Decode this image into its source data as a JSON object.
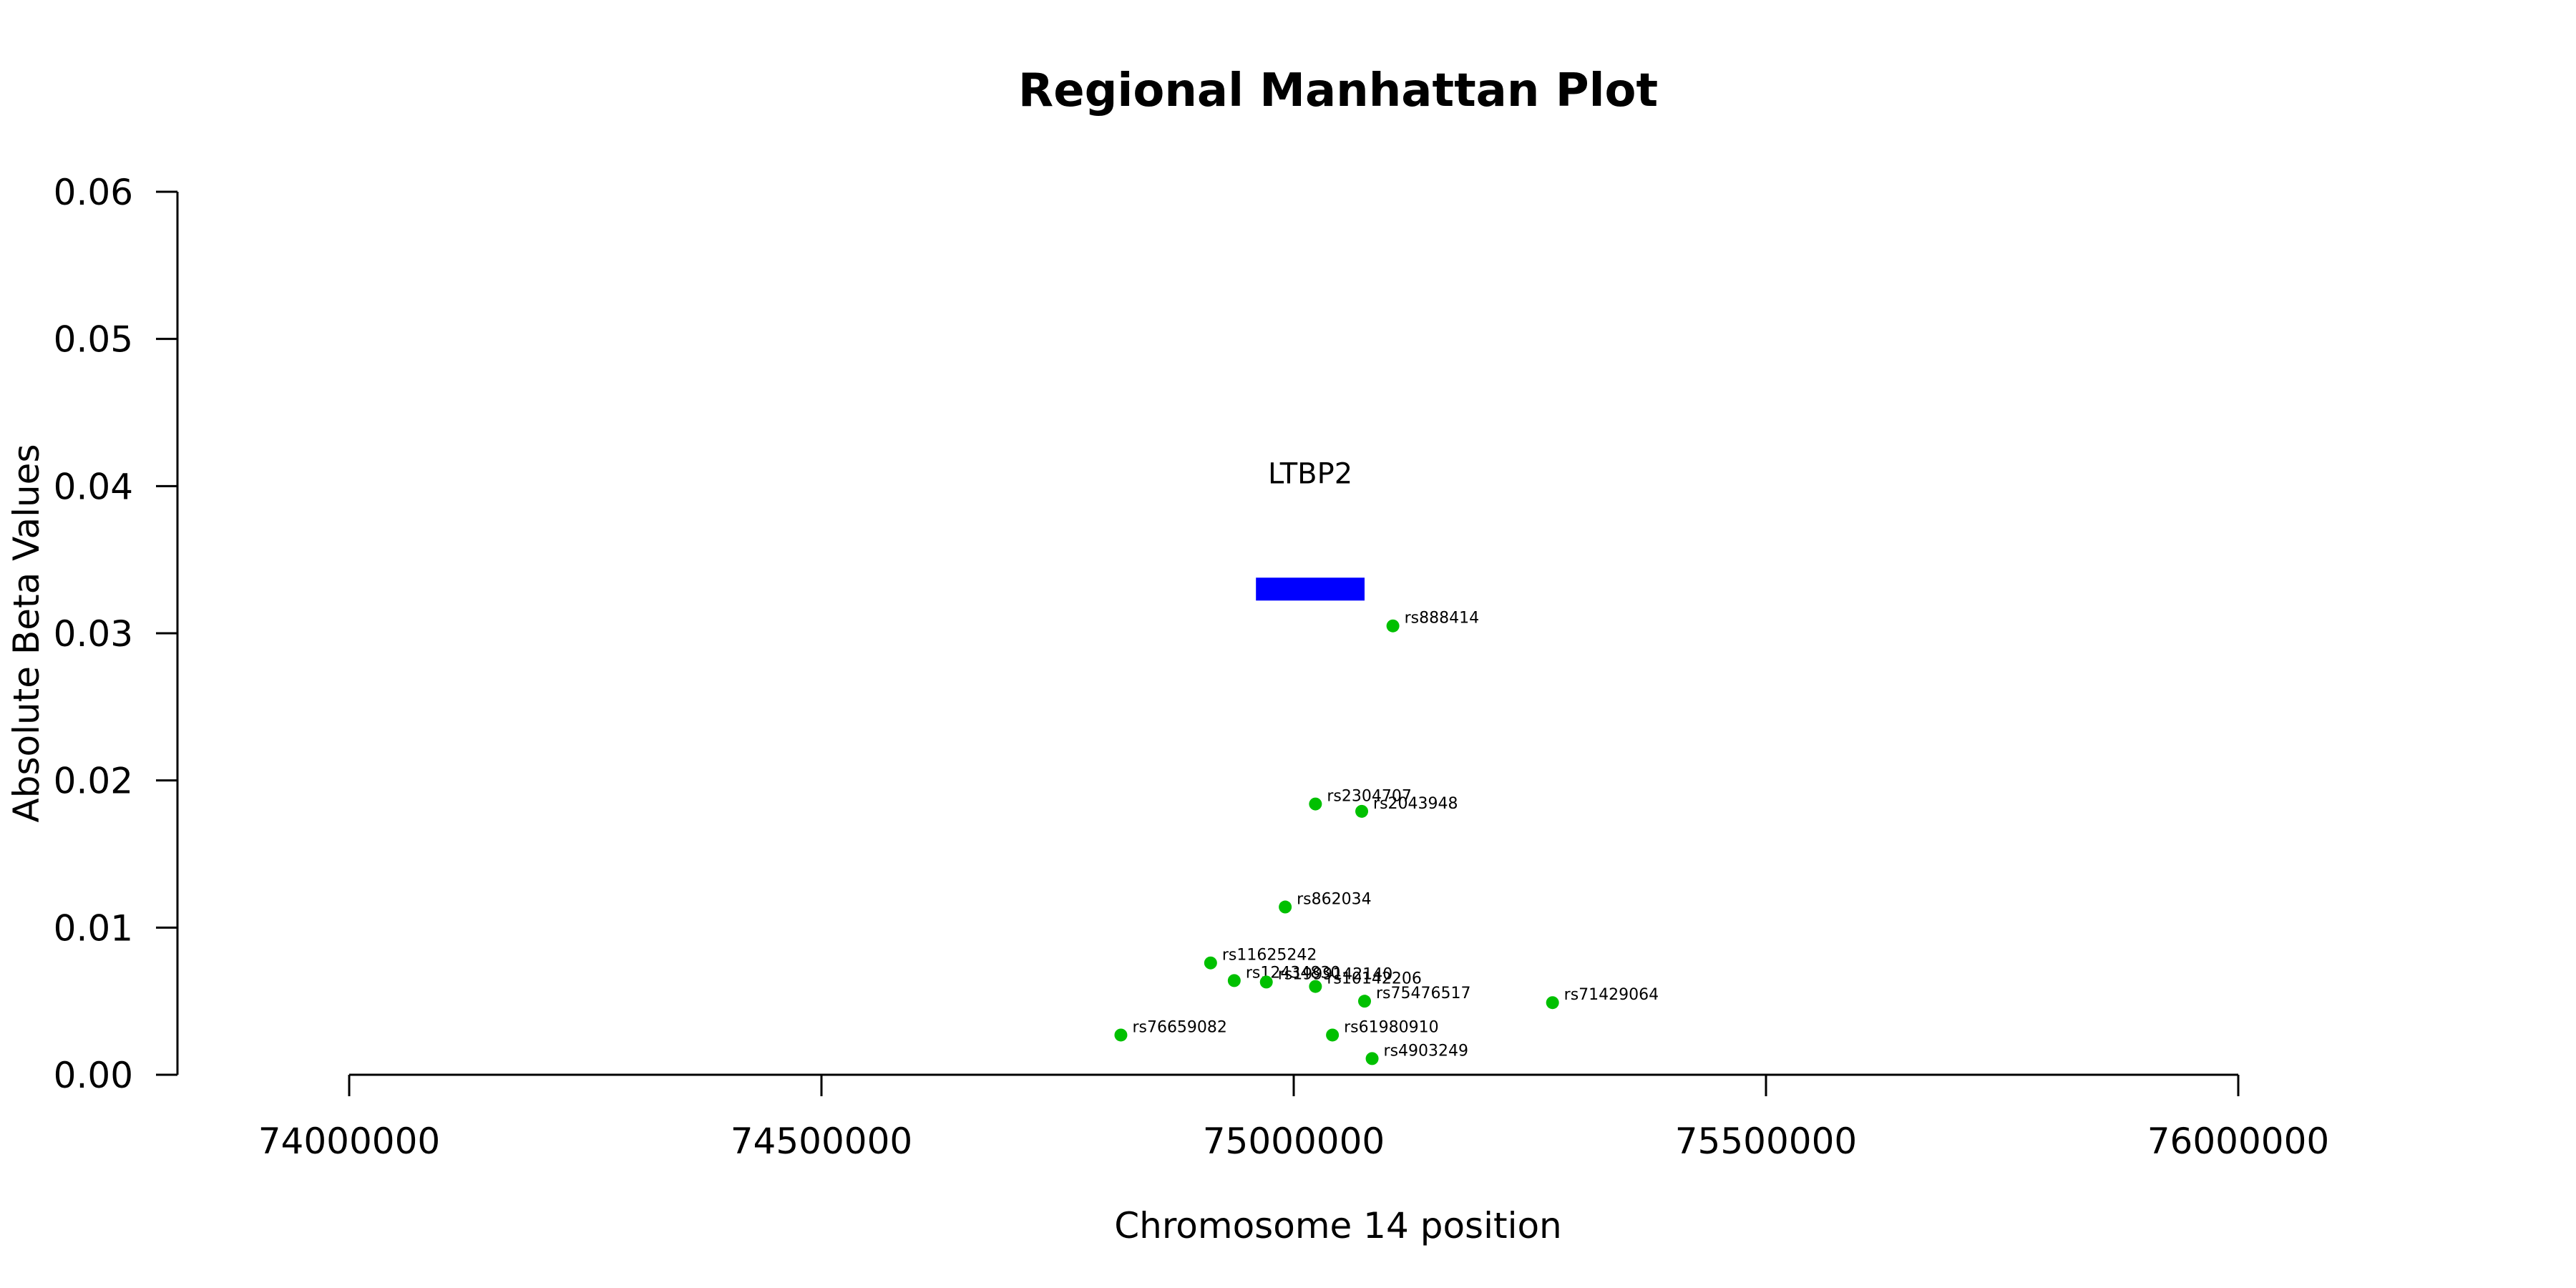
{
  "chart_data": {
    "type": "scatter",
    "title": "Regional Manhattan Plot",
    "xlabel": "Chromosome 14 position",
    "ylabel": "Absolute Beta Values",
    "xlim": [
      73820000,
      76500000
    ],
    "ylim": [
      0,
      0.06
    ],
    "xticks": [
      74000000,
      74500000,
      75000000,
      75500000,
      76000000
    ],
    "yticks": [
      "0.00",
      "0.01",
      "0.02",
      "0.03",
      "0.04",
      "0.05",
      "0.06"
    ],
    "grid": false,
    "point_color": "#00c000",
    "gene": {
      "name": "LTBP2",
      "start": 74960000,
      "end": 75075000,
      "y": 0.033,
      "color": "#0000ff"
    },
    "points": [
      {
        "snp": "rs888414",
        "x": 75105000,
        "y": 0.0305
      },
      {
        "snp": "rs2304707",
        "x": 75023000,
        "y": 0.0184
      },
      {
        "snp": "rs2043948",
        "x": 75072000,
        "y": 0.0179
      },
      {
        "snp": "rs862034",
        "x": 74991000,
        "y": 0.0114
      },
      {
        "snp": "rs11625242",
        "x": 74912000,
        "y": 0.0076
      },
      {
        "snp": "rs12434830",
        "x": 74937000,
        "y": 0.0064
      },
      {
        "snp": "rs1999142140",
        "x": 74971000,
        "y": 0.0063
      },
      {
        "snp": "rs10142206",
        "x": 75023000,
        "y": 0.006
      },
      {
        "snp": "rs75476517",
        "x": 75075000,
        "y": 0.005
      },
      {
        "snp": "rs71429064",
        "x": 75274000,
        "y": 0.0049
      },
      {
        "snp": "rs76659082",
        "x": 74817000,
        "y": 0.0027
      },
      {
        "snp": "rs61980910",
        "x": 75041000,
        "y": 0.0027
      },
      {
        "snp": "rs4903249",
        "x": 75083000,
        "y": 0.0011
      }
    ]
  }
}
